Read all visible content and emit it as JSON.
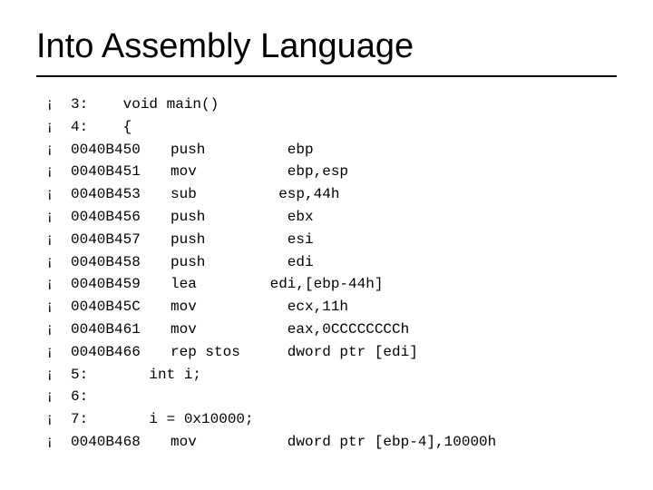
{
  "title": "Into Assembly Language",
  "colors": {
    "text": "#000000",
    "background": "#ffffff",
    "rule": "#000000"
  },
  "typography": {
    "title_fontsize": 38,
    "body_fontsize": 16,
    "title_font": "Arial",
    "body_font": "Courier New",
    "line_height": 1.55
  },
  "bullet_glyph": "¡",
  "lines": [
    {
      "kind": "src",
      "full": "3:    void main()"
    },
    {
      "kind": "src",
      "full": "4:    {"
    },
    {
      "kind": "asm",
      "addr": "0040B450",
      "op": "push",
      "args": "   ebp"
    },
    {
      "kind": "asm",
      "addr": "0040B451",
      "op": "mov",
      "args": "   ebp,esp"
    },
    {
      "kind": "asm",
      "addr": "0040B453",
      "op": "sub",
      "args": "  esp,44h"
    },
    {
      "kind": "asm",
      "addr": "0040B456",
      "op": "push",
      "args": "   ebx"
    },
    {
      "kind": "asm",
      "addr": "0040B457",
      "op": "push",
      "args": "   esi"
    },
    {
      "kind": "asm",
      "addr": "0040B458",
      "op": "push",
      "args": "   edi"
    },
    {
      "kind": "asm",
      "addr": "0040B459",
      "op": "lea",
      "args": " edi,[ebp-44h]"
    },
    {
      "kind": "asm",
      "addr": "0040B45C",
      "op": "mov",
      "args": "   ecx,11h"
    },
    {
      "kind": "asm",
      "addr": "0040B461",
      "op": "mov",
      "args": "   eax,0CCCCCCCCh"
    },
    {
      "kind": "asm",
      "addr": "0040B466",
      "op": "rep stos",
      "args": "   dword ptr [edi]"
    },
    {
      "kind": "src",
      "full": "5:       int i;"
    },
    {
      "kind": "src",
      "full": "6:"
    },
    {
      "kind": "src",
      "full": "7:       i = 0x10000;"
    },
    {
      "kind": "asm",
      "addr": "0040B468",
      "op": "mov",
      "args": "   dword ptr [ebp-4],10000h"
    }
  ]
}
